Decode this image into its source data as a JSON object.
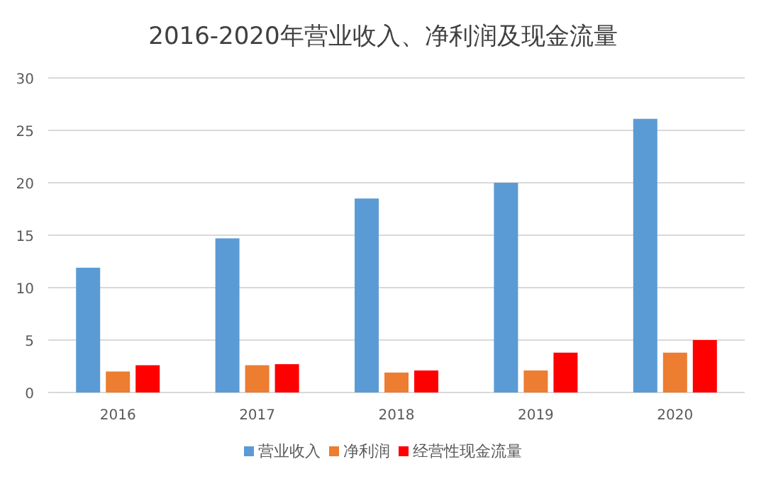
{
  "chart_data": {
    "type": "bar",
    "title": "2016-2020年营业收入、净利润及现金流量",
    "categories": [
      "2016",
      "2017",
      "2018",
      "2019",
      "2020"
    ],
    "series": [
      {
        "name": "营业收入",
        "color": "#5b9bd5",
        "values": [
          11.9,
          14.7,
          18.5,
          20.0,
          26.1
        ]
      },
      {
        "name": "净利润",
        "color": "#ed7d31",
        "values": [
          2.0,
          2.6,
          1.9,
          2.1,
          3.8
        ]
      },
      {
        "name": "经营性现金流量",
        "color": "#ff0000",
        "values": [
          2.6,
          2.7,
          2.1,
          3.8,
          5.0
        ]
      }
    ],
    "ylim": [
      0,
      30
    ],
    "yticks": [
      0,
      5,
      10,
      15,
      20,
      25,
      30
    ],
    "grid": "y",
    "legend": "bottom"
  }
}
